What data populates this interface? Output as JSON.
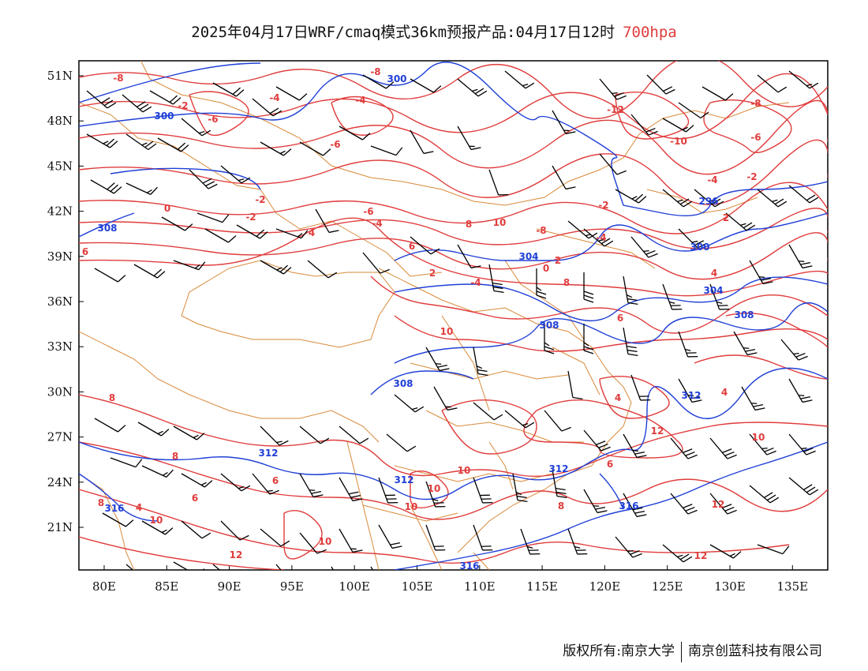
{
  "title": {
    "main": "2025年04月17日WRF/cmaq模式36km预报产品:04月17日12时",
    "level": "700hpa",
    "level_color": "#e03c3c"
  },
  "axes": {
    "lat_labels": [
      "51N",
      "48N",
      "45N",
      "42N",
      "39N",
      "36N",
      "33N",
      "30N",
      "27N",
      "24N",
      "21N"
    ],
    "lon_labels": [
      "80E",
      "85E",
      "90E",
      "95E",
      "100E",
      "105E",
      "110E",
      "115E",
      "120E",
      "125E",
      "130E",
      "135E"
    ]
  },
  "colors": {
    "temperature": "#e03c3c",
    "height": "#1f3fd6",
    "border": "#d98a3a",
    "wind": "#000000"
  },
  "layers": {
    "temperature_contours": "temperature-contours",
    "height_contours": "height-contours",
    "wind_barbs": "wind-barbs",
    "boundaries": "boundaries"
  },
  "temperature_labels": [
    "-8",
    "-4",
    "-2",
    "-6",
    "-8",
    "-4",
    "-12",
    "-10",
    "-8",
    "-6",
    "-2",
    "-4",
    "-2",
    "0",
    "-2",
    "-4",
    "-6",
    "-8",
    "-4",
    "-2",
    "2",
    "0",
    "2",
    "4",
    "-6",
    "-4",
    "2",
    "4",
    "6",
    "8",
    "6",
    "10",
    "8",
    "4",
    "4",
    "6",
    "10",
    "12",
    "8",
    "6",
    "6",
    "10",
    "10",
    "12",
    "12",
    "8",
    "12",
    "10",
    "10",
    "10",
    "8",
    "4",
    "6",
    "8",
    "10"
  ],
  "height_labels": [
    "300",
    "300",
    "296",
    "300",
    "304",
    "304",
    "308",
    "308",
    "308",
    "308",
    "312",
    "312",
    "312",
    "312",
    "316",
    "316",
    "316"
  ],
  "footer": {
    "left": "版权所有:南京大学",
    "right": "南京创蓝科技有限公司"
  }
}
